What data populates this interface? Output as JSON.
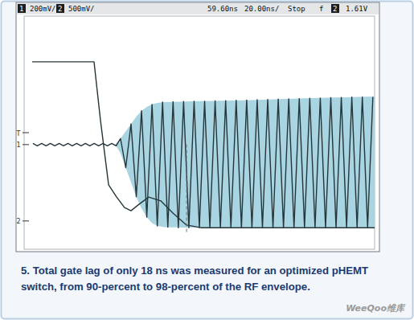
{
  "chart_data": {
    "type": "line",
    "xlim": [
      0,
      200
    ],
    "ylim": [
      -4,
      4
    ],
    "grid": false,
    "tick_labels": false,
    "status_bar": [
      "1",
      "200mV/",
      "2",
      "500mV/",
      "59.60ns",
      "20.00ns/",
      "Stop",
      "f",
      "2",
      "1.61V"
    ],
    "markers": [
      {
        "label": "T",
        "value": 0
      },
      {
        "label": "1",
        "value": -0.41
      },
      {
        "label": "2",
        "value": -3.03
      }
    ],
    "cursor": {
      "x": 92.7,
      "y_range": [
        -0.4,
        -3.45
      ]
    },
    "caption": [
      "5. Total gate lag of only 18 ns was measured for an optimized pHEMT",
      "switch, from 90-percent to 98-percent of the RF envelope."
    ],
    "watermark": "WeeQoo维库",
    "series": [
      {
        "type": "band",
        "color": "#a9d4e1",
        "x": [
          52,
          55,
          58,
          61,
          64,
          67,
          70,
          73,
          76,
          80,
          100,
          130,
          160,
          200
        ],
        "values": [
          -0.41,
          -0.2,
          0.05,
          0.3,
          0.55,
          0.75,
          0.88,
          0.97,
          1.02,
          1.05,
          1.08,
          1.12,
          1.18,
          1.24
        ],
        "lower": [
          -0.41,
          -0.7,
          -1.2,
          -1.7,
          -2.2,
          -2.6,
          -2.9,
          -3.1,
          -3.2,
          -3.24,
          -3.26,
          -3.26,
          -3.26,
          -3.26
        ]
      },
      {
        "type": "line",
        "color": "#26363a",
        "x": [
          5,
          7.5,
          10,
          12.5,
          15,
          17.5,
          20,
          22.5,
          25,
          27.5,
          30,
          32.5,
          35,
          37.5,
          40,
          42.5,
          45,
          47.5,
          50,
          52.5,
          55,
          58,
          61,
          64,
          67,
          70,
          73,
          76,
          79,
          82,
          85,
          88,
          91,
          94,
          97,
          100,
          103,
          106,
          109,
          112,
          115,
          118,
          121,
          124,
          127,
          130,
          133,
          136,
          139,
          142,
          145,
          148,
          151,
          154,
          157,
          160,
          163,
          166,
          169,
          172,
          175,
          178,
          181,
          184,
          187,
          190,
          193,
          196,
          199
        ],
        "values": [
          -0.37,
          -0.45,
          -0.37,
          -0.45,
          -0.37,
          -0.45,
          -0.37,
          -0.45,
          -0.37,
          -0.45,
          -0.37,
          -0.45,
          -0.37,
          -0.45,
          -0.37,
          -0.45,
          -0.37,
          -0.45,
          -0.37,
          -0.45,
          -0.2,
          -1.2,
          0.3,
          -2.2,
          0.75,
          -2.9,
          0.97,
          -3.2,
          1.05,
          -3.24,
          1.06,
          -3.26,
          1.07,
          -3.26,
          1.08,
          -3.26,
          1.08,
          -3.26,
          1.09,
          -3.26,
          1.1,
          -3.26,
          1.11,
          -3.26,
          1.12,
          -3.26,
          1.13,
          -3.26,
          1.14,
          -3.26,
          1.15,
          -3.26,
          1.16,
          -3.26,
          1.17,
          -3.26,
          1.18,
          -3.26,
          1.19,
          -3.26,
          1.2,
          -3.26,
          1.21,
          -3.26,
          1.22,
          -3.26,
          1.22,
          -3.26,
          1.23
        ]
      },
      {
        "type": "line",
        "color": "#26363a",
        "x": [
          4.6,
          39.9,
          43.6,
          48.2,
          52.8,
          57.3,
          61,
          65.1,
          71.1,
          78,
          84.9,
          92.7,
          100.9,
          200
        ],
        "values": [
          2.43,
          2.43,
          0.41,
          -1.79,
          -2.21,
          -2.57,
          -2.68,
          -2.48,
          -2.21,
          -2.34,
          -2.76,
          -3.17,
          -3.26,
          -3.26
        ]
      }
    ]
  }
}
